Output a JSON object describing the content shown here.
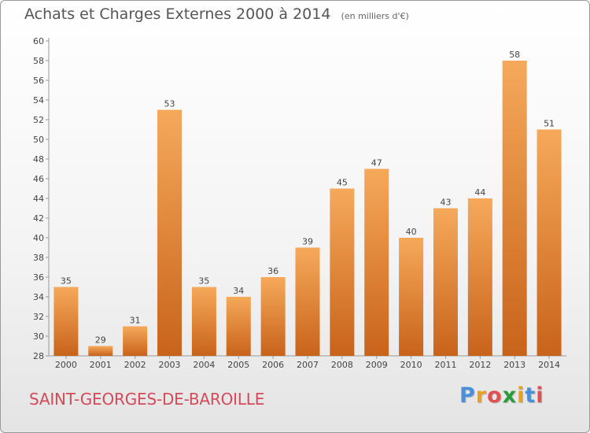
{
  "header": {
    "title": "Achats et Charges Externes 2000 à 2014",
    "unit": "(en milliers d'€)"
  },
  "footer": {
    "commune": "SAINT-GEORGES-DE-BAROILLE",
    "logo": [
      "P",
      "r",
      "o",
      "x",
      "i",
      "t",
      "i"
    ]
  },
  "colors": {
    "bar_top": "#f6a95a",
    "bar_bottom": "#c8631a",
    "commune": "#d44a5a",
    "logo": [
      "#4a8fd8",
      "#e8a020",
      "#e05050",
      "#2a9a3a",
      "#e8a020",
      "#4a8fd8",
      "#e05050"
    ]
  },
  "chart_data": {
    "type": "bar",
    "categories": [
      "2000",
      "2001",
      "2002",
      "2003",
      "2004",
      "2005",
      "2006",
      "2007",
      "2008",
      "2009",
      "2010",
      "2011",
      "2012",
      "2013",
      "2014"
    ],
    "values": [
      35,
      29,
      31,
      53,
      35,
      34,
      36,
      39,
      45,
      47,
      40,
      43,
      44,
      58,
      51
    ],
    "ylim": [
      28,
      60
    ],
    "yticks": [
      28,
      30,
      32,
      34,
      36,
      38,
      40,
      42,
      44,
      46,
      48,
      50,
      52,
      54,
      56,
      58,
      60
    ],
    "grid": false
  }
}
